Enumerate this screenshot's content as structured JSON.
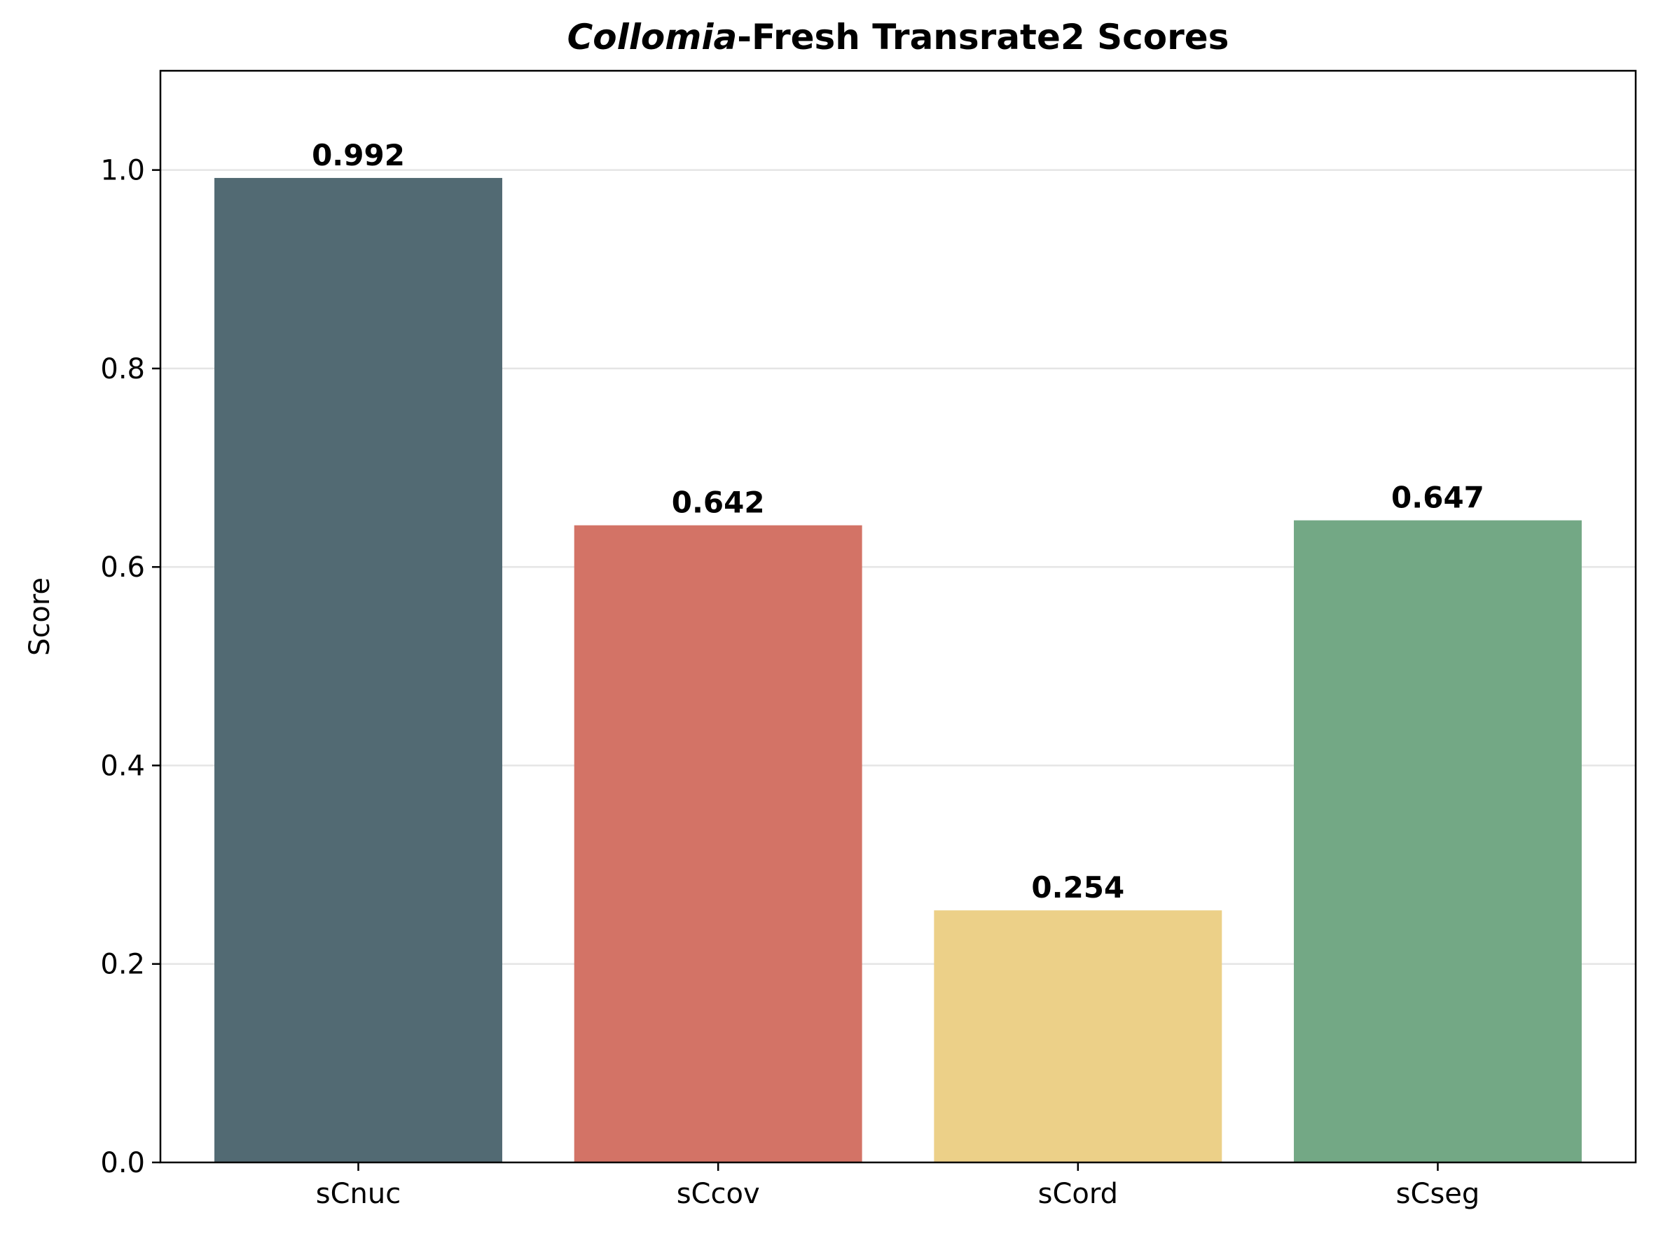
{
  "chart_data": {
    "type": "bar",
    "title_italic": "Collomia",
    "title_rest": "-Fresh Transrate2 Scores",
    "xlabel": "",
    "ylabel": "Score",
    "categories": [
      "sCnuc",
      "sCcov",
      "sCord",
      "sCseg"
    ],
    "values": [
      0.992,
      0.642,
      0.254,
      0.647
    ],
    "value_labels": [
      "0.992",
      "0.642",
      "0.254",
      "0.647"
    ],
    "colors": [
      "#526a73",
      "#d37366",
      "#ecd088",
      "#73a885"
    ],
    "ylim": [
      0,
      1.1
    ],
    "yticks": [
      0.0,
      0.2,
      0.4,
      0.6,
      0.8,
      1.0
    ],
    "ytick_labels": [
      "0.0",
      "0.2",
      "0.4",
      "0.6",
      "0.8",
      "1.0"
    ],
    "grid": "horizontal",
    "grid_color": "#e5e5e5",
    "legend": "none"
  }
}
